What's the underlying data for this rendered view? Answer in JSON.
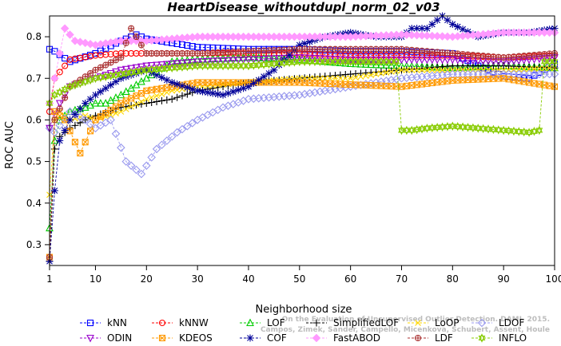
{
  "chart_data": {
    "type": "line",
    "title": "HeartDisease_withoutdupl_norm_02_v03",
    "xlabel": "Neighborhood size",
    "ylabel": "ROC AUC",
    "xlim": [
      1,
      100
    ],
    "ylim": [
      0.25,
      0.85
    ],
    "xticks": [
      1,
      10,
      20,
      30,
      40,
      50,
      60,
      70,
      80,
      90,
      100
    ],
    "yticks": [
      0.3,
      0.4,
      0.5,
      0.6,
      0.7,
      0.8
    ],
    "grid": false,
    "legend_position": "bottom",
    "series": [
      {
        "name": "kNN",
        "color": "#0000ff",
        "marker": "square",
        "x": [
          1,
          2,
          5,
          10,
          15,
          18,
          20,
          25,
          30,
          40,
          50,
          60,
          70,
          80,
          85,
          90,
          95,
          100
        ],
        "y": [
          0.77,
          0.765,
          0.74,
          0.76,
          0.79,
          0.805,
          0.795,
          0.785,
          0.775,
          0.77,
          0.77,
          0.765,
          0.765,
          0.76,
          0.73,
          0.705,
          0.7,
          0.735
        ]
      },
      {
        "name": "kNNW",
        "color": "#ff0000",
        "marker": "circle",
        "x": [
          1,
          2,
          5,
          10,
          15,
          20,
          30,
          40,
          50,
          60,
          70,
          80,
          90,
          100
        ],
        "y": [
          0.62,
          0.7,
          0.745,
          0.755,
          0.76,
          0.76,
          0.76,
          0.76,
          0.76,
          0.755,
          0.755,
          0.755,
          0.75,
          0.755
        ]
      },
      {
        "name": "LOF",
        "color": "#00cc00",
        "marker": "triangle-up",
        "x": [
          1,
          2,
          3,
          5,
          8,
          10,
          12,
          15,
          20,
          25,
          30,
          40,
          50,
          60,
          70,
          80,
          90,
          100
        ],
        "y": [
          0.34,
          0.55,
          0.6,
          0.62,
          0.63,
          0.64,
          0.64,
          0.66,
          0.7,
          0.74,
          0.745,
          0.75,
          0.745,
          0.735,
          0.73,
          0.725,
          0.73,
          0.725
        ]
      },
      {
        "name": "SimplifiedLOF",
        "color": "#000000",
        "marker": "plus",
        "x": [
          1,
          2,
          3,
          5,
          8,
          10,
          15,
          20,
          25,
          30,
          40,
          50,
          60,
          70,
          80,
          90,
          100
        ],
        "y": [
          0.26,
          0.53,
          0.56,
          0.58,
          0.6,
          0.61,
          0.63,
          0.64,
          0.65,
          0.67,
          0.69,
          0.7,
          0.71,
          0.72,
          0.73,
          0.73,
          0.725
        ]
      },
      {
        "name": "LoOP",
        "color": "#ffd700",
        "marker": "x",
        "x": [
          1,
          2,
          3,
          5,
          8,
          10,
          15,
          20,
          25,
          30,
          40,
          50,
          60,
          70,
          80,
          90,
          100
        ],
        "y": [
          0.42,
          0.6,
          0.62,
          0.6,
          0.61,
          0.6,
          0.62,
          0.65,
          0.67,
          0.68,
          0.69,
          0.7,
          0.7,
          0.72,
          0.72,
          0.72,
          0.725
        ]
      },
      {
        "name": "LDOF",
        "color": "#9999ee",
        "marker": "diamond",
        "x": [
          1,
          2,
          5,
          8,
          10,
          13,
          16,
          19,
          22,
          26,
          30,
          35,
          40,
          50,
          60,
          70,
          80,
          90,
          100
        ],
        "y": [
          0.58,
          0.57,
          0.62,
          0.6,
          0.58,
          0.6,
          0.5,
          0.47,
          0.53,
          0.57,
          0.6,
          0.63,
          0.65,
          0.66,
          0.68,
          0.7,
          0.71,
          0.71,
          0.71
        ]
      },
      {
        "name": "ODIN",
        "color": "#9900cc",
        "marker": "triangle-down",
        "x": [
          1,
          2,
          5,
          10,
          15,
          20,
          30,
          40,
          50,
          60,
          70,
          80,
          90,
          100
        ],
        "y": [
          0.58,
          0.62,
          0.68,
          0.7,
          0.72,
          0.73,
          0.74,
          0.745,
          0.75,
          0.745,
          0.745,
          0.745,
          0.74,
          0.75
        ]
      },
      {
        "name": "KDEOS",
        "color": "#ff9900",
        "marker": "square-x",
        "x": [
          1,
          2,
          4,
          7,
          10,
          15,
          20,
          25,
          30,
          40,
          50,
          60,
          70,
          80,
          90,
          95,
          100
        ],
        "y": [
          0.27,
          0.62,
          0.6,
          0.52,
          0.6,
          0.64,
          0.67,
          0.68,
          0.69,
          0.69,
          0.69,
          0.685,
          0.68,
          0.695,
          0.7,
          0.69,
          0.68
        ]
      },
      {
        "name": "COF",
        "color": "#000099",
        "marker": "asterisk",
        "x": [
          1,
          2,
          3,
          5,
          8,
          10,
          15,
          20,
          25,
          30,
          35,
          40,
          45,
          50,
          55,
          60,
          65,
          70,
          72,
          75,
          78,
          80,
          85,
          90,
          95,
          100
        ],
        "y": [
          0.26,
          0.43,
          0.55,
          0.6,
          0.64,
          0.66,
          0.7,
          0.72,
          0.69,
          0.67,
          0.66,
          0.68,
          0.72,
          0.78,
          0.8,
          0.81,
          0.8,
          0.8,
          0.82,
          0.82,
          0.85,
          0.83,
          0.8,
          0.81,
          0.81,
          0.82
        ]
      },
      {
        "name": "FastABOD",
        "color": "#ff99ff",
        "marker": "diamond-filled",
        "x": [
          1,
          2,
          4,
          6,
          10,
          15,
          20,
          30,
          40,
          50,
          60,
          70,
          80,
          90,
          100
        ],
        "y": [
          0.64,
          0.7,
          0.82,
          0.79,
          0.78,
          0.79,
          0.79,
          0.8,
          0.8,
          0.8,
          0.8,
          0.805,
          0.8,
          0.81,
          0.81
        ]
      },
      {
        "name": "LDF",
        "color": "#aa3333",
        "marker": "circle-plus",
        "x": [
          1,
          2,
          5,
          10,
          15,
          17,
          20,
          30,
          40,
          50,
          60,
          70,
          80,
          90,
          100
        ],
        "y": [
          0.27,
          0.6,
          0.68,
          0.72,
          0.75,
          0.82,
          0.76,
          0.76,
          0.765,
          0.77,
          0.77,
          0.77,
          0.76,
          0.75,
          0.76
        ]
      },
      {
        "name": "INFLO",
        "color": "#88cc00",
        "marker": "star",
        "x": [
          1,
          2,
          5,
          10,
          15,
          20,
          30,
          40,
          50,
          60,
          69,
          70,
          72,
          75,
          80,
          85,
          90,
          95,
          97,
          98,
          100
        ],
        "y": [
          0.64,
          0.66,
          0.68,
          0.7,
          0.71,
          0.72,
          0.73,
          0.73,
          0.74,
          0.74,
          0.74,
          0.575,
          0.575,
          0.58,
          0.585,
          0.58,
          0.575,
          0.57,
          0.575,
          0.74,
          0.74
        ]
      }
    ]
  },
  "watermark": "Campos, Zimek, Sander, Campello, Micenkova, Schubert, Assent, Houle\nOn the Evaluation of Unsupervised Outlier Detection. DAMI, 2015."
}
